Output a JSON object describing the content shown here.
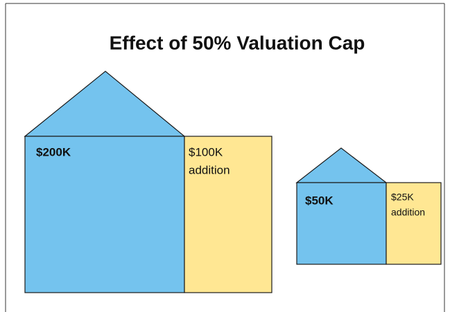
{
  "title": "Effect of 50% Valuation Cap",
  "houses": [
    {
      "label": "$200K",
      "addition": [
        "$100K",
        "addition"
      ]
    },
    {
      "label": "$50K",
      "addition": [
        "$25K",
        "addition"
      ]
    }
  ]
}
